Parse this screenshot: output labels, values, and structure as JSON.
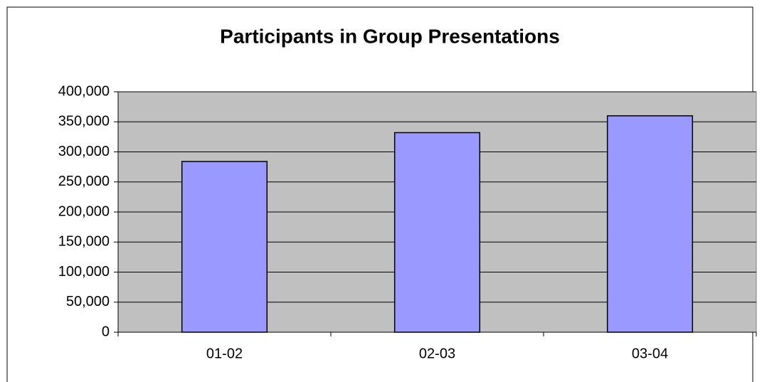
{
  "chart_data": {
    "type": "bar",
    "title": "Participants in Group Presentations",
    "categories": [
      "01-02",
      "02-03",
      "03-04"
    ],
    "values": [
      284000,
      332000,
      360000
    ],
    "color": "#9999ff",
    "ylim": [
      0,
      400000
    ],
    "yticks": [
      0,
      {
        "value": 50000,
        "label": "50,000"
      },
      {
        "value": 100000,
        "label": "100,000"
      },
      {
        "value": 150000,
        "label": "150,000"
      },
      {
        "value": 200000,
        "label": "200,000"
      },
      {
        "value": 250000,
        "label": "250,000"
      },
      {
        "value": 300000,
        "label": "300,000"
      },
      {
        "value": 350000,
        "label": "350,000"
      },
      {
        "value": 400000,
        "label": "400,000"
      }
    ],
    "grid": true
  }
}
